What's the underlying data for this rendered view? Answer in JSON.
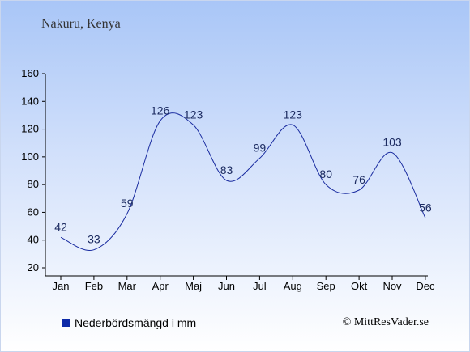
{
  "header": {
    "place": "Nakuru, Kenya"
  },
  "legend": {
    "label": "Nederbördsmängd i mm"
  },
  "footer": {
    "credit": "© MittResVader.se"
  },
  "colors": {
    "line": "#1a2ca0",
    "legend_swatch": "#0d2aa8",
    "sky_top": "#a9c6f7"
  },
  "chart_data": {
    "type": "line",
    "title": "",
    "xlabel": "",
    "ylabel": "",
    "categories": [
      "Jan",
      "Feb",
      "Mar",
      "Apr",
      "Maj",
      "Jun",
      "Jul",
      "Aug",
      "Sep",
      "Okt",
      "Nov",
      "Dec"
    ],
    "series": [
      {
        "name": "Nederbördsmängd i mm",
        "values": [
          42,
          33,
          59,
          126,
          123,
          83,
          99,
          123,
          80,
          76,
          103,
          56
        ]
      }
    ],
    "ylim": [
      20,
      160
    ],
    "yticks": [
      20,
      40,
      60,
      80,
      100,
      120,
      140,
      160
    ],
    "grid": false,
    "legend_position": "bottom-left"
  }
}
